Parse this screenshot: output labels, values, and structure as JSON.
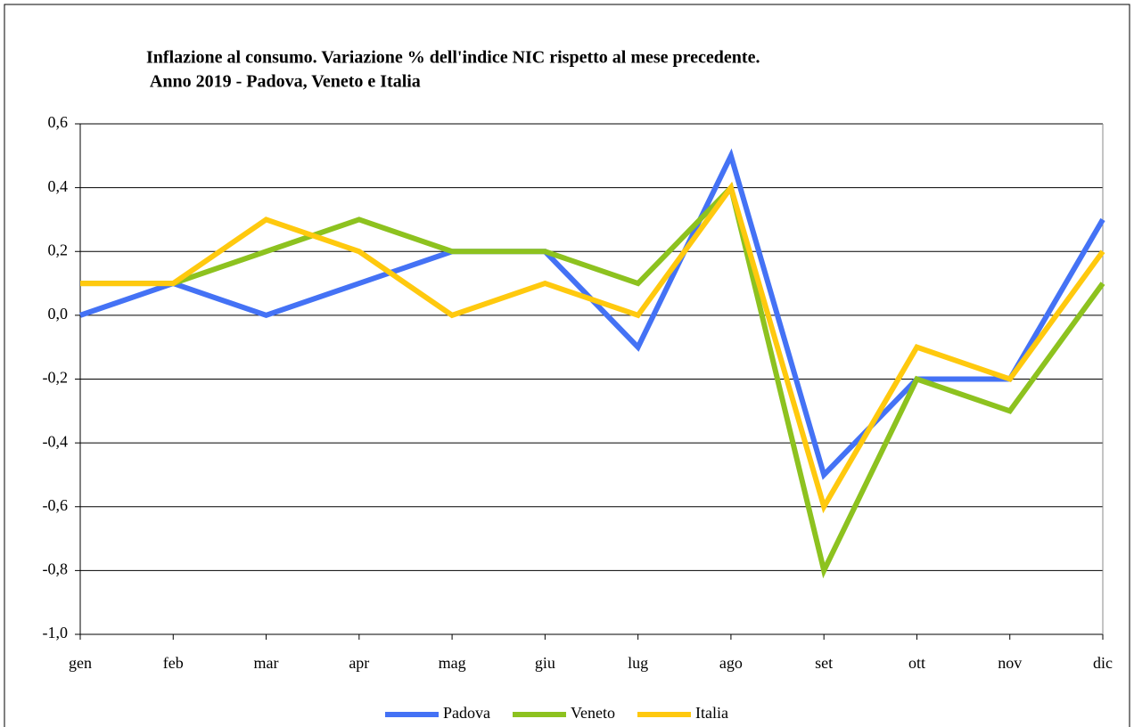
{
  "chart_data": {
    "type": "line",
    "title": [
      "Inflazione al consumo. Variazione % dell'indice NIC rispetto al mese precedente.",
      " Anno 2019 - Padova, Veneto e Italia"
    ],
    "categories": [
      "gen",
      "feb",
      "mar",
      "apr",
      "mag",
      "giu",
      "lug",
      "ago",
      "set",
      "ott",
      "nov",
      "dic"
    ],
    "series": [
      {
        "name": "Padova",
        "color": "#4472f5",
        "values": [
          0,
          0.1,
          0,
          0.1,
          0.2,
          0.2,
          -0.1,
          0.5,
          -0.5,
          -0.2,
          -0.2,
          0.3
        ]
      },
      {
        "name": "Veneto",
        "color": "#8dc21f",
        "values": [
          0.1,
          0.1,
          0.2,
          0.3,
          0.2,
          0.2,
          0.1,
          0.4,
          -0.8,
          -0.2,
          -0.3,
          0.1
        ]
      },
      {
        "name": "Italia",
        "color": "#ffc90e",
        "values": [
          0.1,
          0.1,
          0.3,
          0.2,
          0,
          0.1,
          0,
          0.4,
          -0.6,
          -0.1,
          -0.2,
          0.2
        ]
      }
    ],
    "ylim": [
      -1.0,
      0.6
    ],
    "yticks": [
      {
        "value": -1.0,
        "label": "-1,0"
      },
      {
        "value": -0.8,
        "label": "-0,8"
      },
      {
        "value": -0.6,
        "label": "-0,6"
      },
      {
        "value": -0.4,
        "label": "-0,4"
      },
      {
        "value": -0.2,
        "label": "-0,2"
      },
      {
        "value": 0,
        "label": "0,0"
      },
      {
        "value": 0.2,
        "label": "0,2"
      },
      {
        "value": 0.4,
        "label": "0,4"
      },
      {
        "value": 0.6,
        "label": "0,6"
      }
    ],
    "grid": true,
    "legend": "bottom"
  }
}
